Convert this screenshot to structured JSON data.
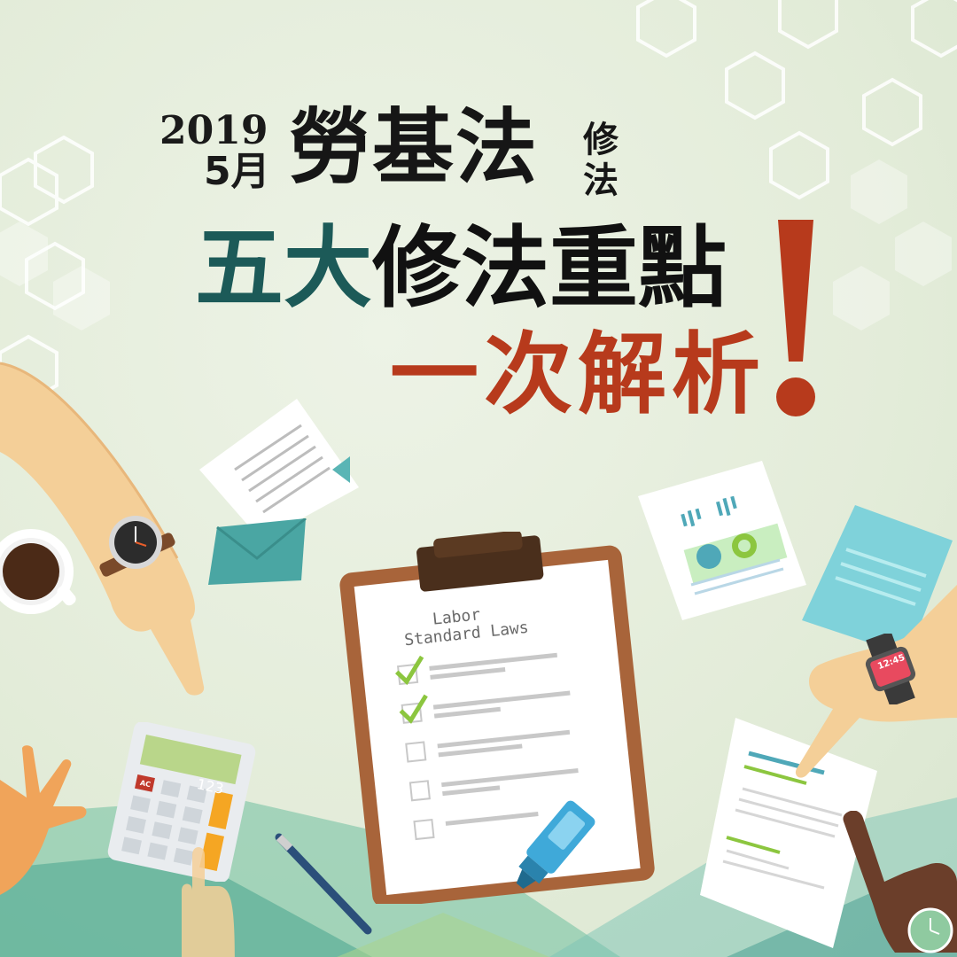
{
  "headline": {
    "year": "2019",
    "month": "5月",
    "law": "勞基法",
    "amend_top": "修",
    "amend_bottom": "法",
    "line2_highlight": "五大",
    "line2_rest": "修法重點",
    "line3": "一次解析"
  },
  "clipboard": {
    "title_line1": "Labor",
    "title_line2": "Standard Laws",
    "items": [
      {
        "checked": true
      },
      {
        "checked": true
      },
      {
        "checked": false
      },
      {
        "checked": false
      },
      {
        "checked": false
      }
    ]
  },
  "calculator": {
    "display": "123",
    "key_ac": "AC"
  },
  "smartwatch": {
    "display": "12:45"
  },
  "colors": {
    "background": "#e6eedd",
    "teal_accent": "#1c5a58",
    "red_accent": "#b73a1c",
    "check_green": "#8cc63f",
    "clipboard_brown": "#a8643a"
  }
}
